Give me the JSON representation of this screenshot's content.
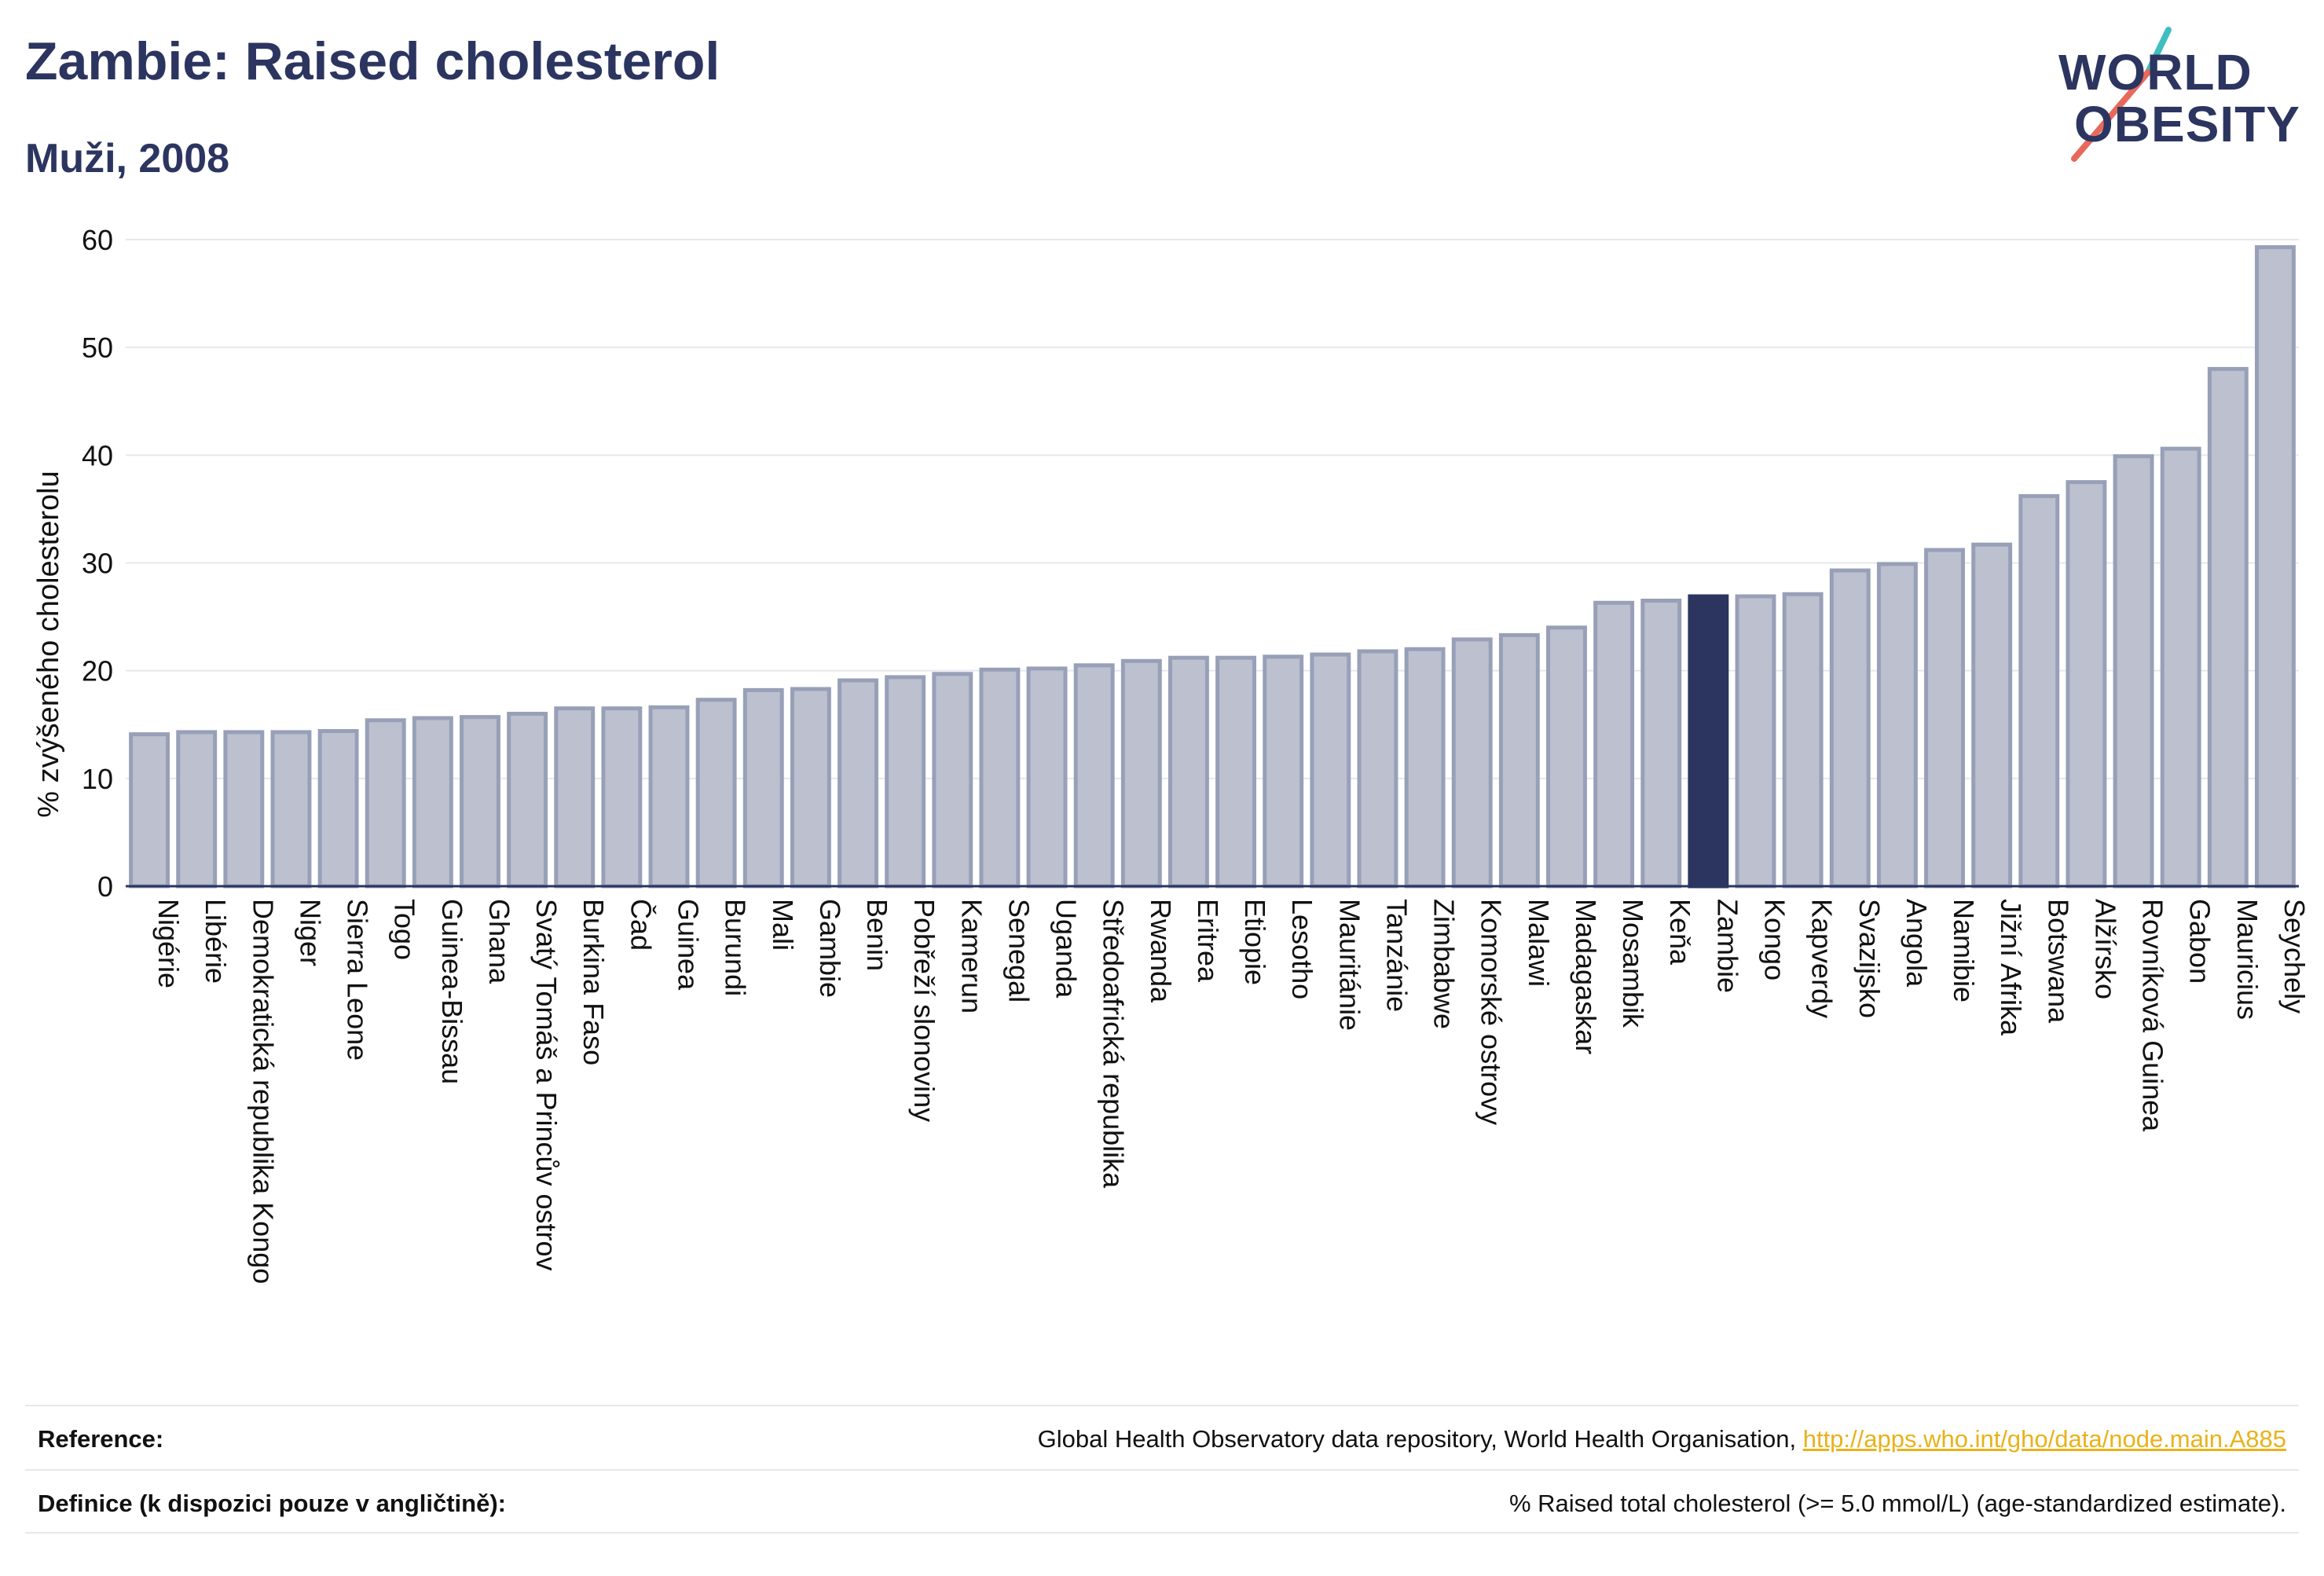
{
  "header": {
    "title": "Zambie: Raised cholesterol",
    "subtitle": "Muži, 2008"
  },
  "logo": {
    "line1": "WORLD",
    "line2": "OBESITY",
    "accent_colors": [
      "#3ebfbf",
      "#e8695c"
    ]
  },
  "colors": {
    "bar": "#bcc0cf",
    "bar_border": "#98a0b8",
    "highlight": "#2c3560",
    "grid": "#e6e8ee",
    "axis": "#2c3560"
  },
  "chart_data": {
    "type": "bar",
    "title": "Zambie: Raised cholesterol",
    "subtitle": "Muži, 2008",
    "xlabel": "",
    "ylabel": "% zvýšeného cholesterolu",
    "ylim": [
      0,
      60
    ],
    "yticks": [
      0,
      10,
      20,
      30,
      40,
      50,
      60
    ],
    "grid": true,
    "highlight": "Zambie",
    "categories": [
      "Nigérie",
      "Libérie",
      "Demokratická republika Kongo",
      "Niger",
      "Sierra Leone",
      "Togo",
      "Guinea-Bissau",
      "Ghana",
      "Svatý Tomáš a Princův ostrov",
      "Burkina Faso",
      "Čad",
      "Guinea",
      "Burundi",
      "Mali",
      "Gambie",
      "Benin",
      "Pobřeží slonoviny",
      "Kamerun",
      "Senegal",
      "Uganda",
      "Středoafrická republika",
      "Rwanda",
      "Eritrea",
      "Etiopie",
      "Lesotho",
      "Mauritánie",
      "Tanzánie",
      "Zimbabwe",
      "Komorské ostrovy",
      "Malawi",
      "Madagaskar",
      "Mosambik",
      "Keňa",
      "Zambie",
      "Kongo",
      "Kapverdy",
      "Svazijsko",
      "Angola",
      "Namibie",
      "Jižní Afrika",
      "Botswana",
      "Alžírsko",
      "Rovníková Guinea",
      "Gabon",
      "Mauricius",
      "Seychely"
    ],
    "values": [
      14.1,
      14.3,
      14.3,
      14.3,
      14.4,
      15.4,
      15.6,
      15.7,
      16.0,
      16.5,
      16.5,
      16.6,
      17.3,
      18.2,
      18.3,
      19.1,
      19.4,
      19.7,
      20.1,
      20.2,
      20.5,
      20.9,
      21.2,
      21.2,
      21.3,
      21.5,
      21.8,
      22.0,
      22.9,
      23.3,
      24.0,
      26.3,
      26.5,
      26.9,
      26.9,
      27.1,
      29.3,
      29.9,
      31.2,
      31.7,
      36.2,
      37.5,
      39.9,
      40.6,
      48.0,
      59.3
    ]
  },
  "footer": {
    "reference_label": "Reference:",
    "reference_text": "Global Health Observatory data repository, World Health Organisation, ",
    "reference_link": "http://apps.who.int/gho/data/node.main.A885",
    "definition_label": "Definice (k dispozici pouze v angličtině):",
    "definition_text": "% Raised total cholesterol (>= 5.0 mmol/L) (age-standardized estimate)."
  }
}
